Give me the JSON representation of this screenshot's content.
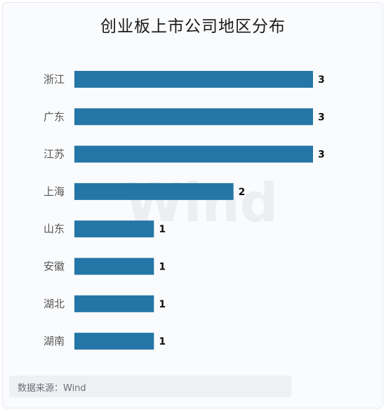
{
  "title": "创业板上市公司地区分布",
  "watermark": "Wind",
  "source": "数据来源：Wind",
  "colors": {
    "bar": "#2476a6",
    "label": "#555555",
    "value": "#111111",
    "watermark": "#eceef1"
  },
  "chart_data": {
    "type": "bar",
    "orientation": "horizontal",
    "title": "创业板上市公司地区分布",
    "categories": [
      "浙江",
      "广东",
      "江苏",
      "上海",
      "山东",
      "安徽",
      "湖北",
      "湖南"
    ],
    "values": [
      3,
      3,
      3,
      2,
      1,
      1,
      1,
      1
    ],
    "xlim": [
      0,
      3
    ],
    "grid": false,
    "legend": "none"
  }
}
